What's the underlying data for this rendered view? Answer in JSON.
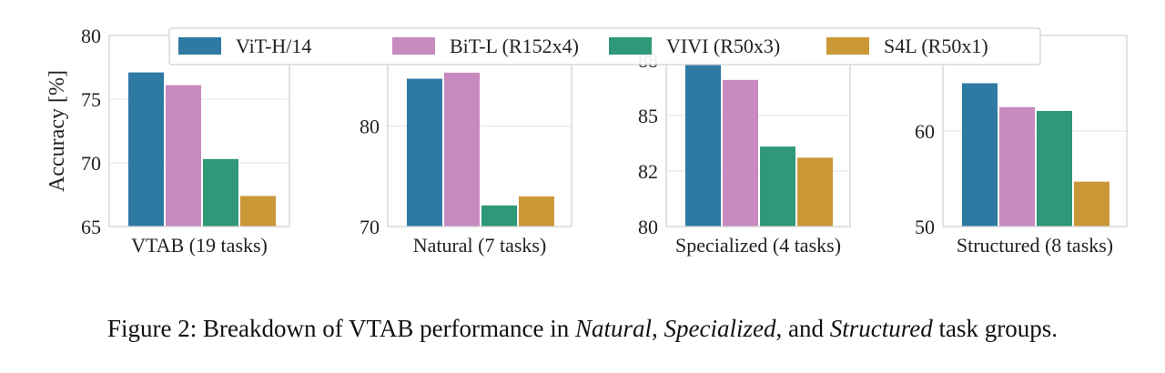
{
  "chart_data": [
    {
      "type": "bar",
      "xlabel": "VTAB (19 tasks)",
      "ylabel": "Accuracy [%]",
      "ylim": [
        65,
        80
      ],
      "yticks": [
        65,
        70,
        75,
        80
      ],
      "ytick_labels": [
        "65",
        "70",
        "75",
        "80"
      ],
      "series": [
        {
          "name": "ViT-H/14",
          "values": [
            77.1
          ]
        },
        {
          "name": "BiT-L (R152x4)",
          "values": [
            76.1
          ]
        },
        {
          "name": "VIVI (R50x3)",
          "values": [
            70.3
          ]
        },
        {
          "name": "S4L (R50x1)",
          "values": [
            67.4
          ]
        }
      ],
      "grid": true
    },
    {
      "type": "bar",
      "xlabel": "Natural (7 tasks)",
      "ylabel": "",
      "ylim": [
        70,
        89
      ],
      "yticks": [
        70,
        80
      ],
      "ytick_labels": [
        "70",
        "80"
      ],
      "series": [
        {
          "name": "ViT-H/14",
          "values": [
            84.7
          ]
        },
        {
          "name": "BiT-L (R152x4)",
          "values": [
            85.3
          ]
        },
        {
          "name": "VIVI (R50x3)",
          "values": [
            72.1
          ]
        },
        {
          "name": "S4L (R50x1)",
          "values": [
            73.0
          ]
        }
      ],
      "grid": true
    },
    {
      "type": "bar",
      "xlabel": "Specialized (4 tasks)",
      "ylabel": "",
      "ylim": [
        80,
        88.6
      ],
      "yticks": [
        80,
        82.5,
        85,
        87.5
      ],
      "ytick_labels": [
        "80",
        "82",
        "85",
        "88"
      ],
      "series": [
        {
          "name": "ViT-H/14",
          "values": [
            87.3
          ]
        },
        {
          "name": "BiT-L (R152x4)",
          "values": [
            86.6
          ]
        },
        {
          "name": "VIVI (R50x3)",
          "values": [
            83.6
          ]
        },
        {
          "name": "S4L (R50x1)",
          "values": [
            83.1
          ]
        }
      ],
      "grid": true
    },
    {
      "type": "bar",
      "xlabel": "Structured (8 tasks)",
      "ylabel": "",
      "ylim": [
        50,
        70
      ],
      "yticks": [
        50,
        60
      ],
      "ytick_labels": [
        "50",
        "60"
      ],
      "series": [
        {
          "name": "ViT-H/14",
          "values": [
            65.0
          ]
        },
        {
          "name": "BiT-L (R152x4)",
          "values": [
            62.5
          ]
        },
        {
          "name": "VIVI (R50x3)",
          "values": [
            62.1
          ]
        },
        {
          "name": "S4L (R50x1)",
          "values": [
            54.7
          ]
        }
      ],
      "grid": true
    }
  ],
  "legend": {
    "placement": "top-center",
    "entries": [
      {
        "label": "ViT-H/14",
        "color": "#2e7aa3"
      },
      {
        "label": "BiT-L (R152x4)",
        "color": "#c78bbf"
      },
      {
        "label": "VIVI (R50x3)",
        "color": "#2e9878"
      },
      {
        "label": "S4L (R50x1)",
        "color": "#cb9838"
      }
    ]
  },
  "caption": {
    "prefix": "Figure 2: Breakdown of VTAB performance in ",
    "natural": "Natural",
    "sep1": ", ",
    "specialized": "Specialized",
    "sep2": ", and ",
    "structured": "Structured",
    "suffix": " task groups."
  }
}
